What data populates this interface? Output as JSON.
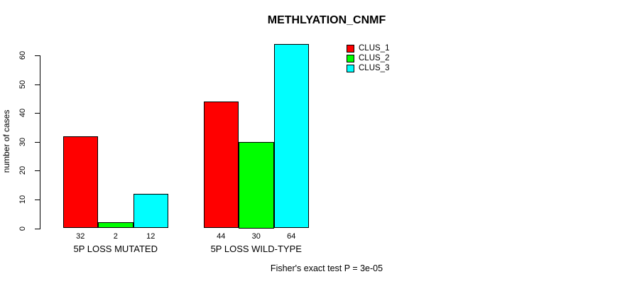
{
  "colors": {
    "background": "#ffffff",
    "axis": "#000000",
    "clus_1": "#ff0000",
    "clus_2": "#00ff00",
    "clus_3": "#00ffff"
  },
  "chart_data": {
    "type": "bar",
    "title": "METHLYATION_CNMF",
    "xlabel": "",
    "ylabel": "number of cases",
    "ylim": [
      0,
      60
    ],
    "yticks": [
      0,
      10,
      20,
      30,
      40,
      50,
      60
    ],
    "grid": false,
    "legend_position": "top-right",
    "categories": [
      "5P LOSS MUTATED",
      "5P LOSS WILD-TYPE"
    ],
    "series": [
      {
        "name": "CLUS_1",
        "color": "#ff0000",
        "values": [
          32,
          44
        ]
      },
      {
        "name": "CLUS_2",
        "color": "#00ff00",
        "values": [
          2,
          30
        ]
      },
      {
        "name": "CLUS_3",
        "color": "#00ffff",
        "values": [
          12,
          64
        ]
      }
    ],
    "show_value_labels": true,
    "annotation": "Fisher's exact test P = 3e-05"
  }
}
